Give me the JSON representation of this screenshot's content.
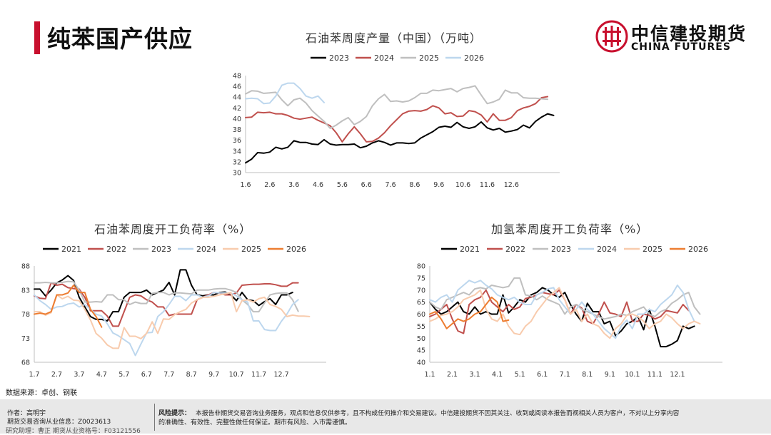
{
  "header": {
    "title": "纯苯国产供应",
    "logo_cn": "中信建投期货",
    "logo_en": "CHINA FUTURES",
    "brand_color": "#c8102e"
  },
  "source_note": "数据来源：卓创、钢联",
  "footer": {
    "author": "作者：高明宇",
    "license": "期货交易咨询从业信息：Z0023613",
    "assistant": "研究助理：曹正  期货从业资格号：F03121556",
    "risk_label": "风险提示：",
    "risk_line1": "本报告非期货交易咨询业务服务，观点和信息仅供参考，且不构成任何推介和交易建议。中信建投期货不因其关注、收到或阅读本报告而视相关人员为客户，不对以上分享内容",
    "risk_line2": "的准确性、有效性、完整性做任何保证。期市有风险、入市需谨慎。"
  },
  "chart_data": [
    {
      "type": "line",
      "title": "石油苯周度产量（中国）（万吨）",
      "ylim": [
        30,
        48
      ],
      "yticks": [
        "30",
        "32",
        "34",
        "36",
        "38",
        "40",
        "42",
        "44",
        "46",
        "48"
      ],
      "xlim": [
        0,
        52
      ],
      "x_tick_labels": [
        "1.6",
        "2.6",
        "3.6",
        "4.6",
        "5.6",
        "6.6",
        "7.6",
        "8.6",
        "9.6",
        "10.6",
        "11.6",
        "12.6"
      ],
      "x_tick_pos": [
        0,
        4,
        8,
        12,
        16,
        20,
        24,
        28,
        32,
        36,
        40,
        44
      ],
      "series": [
        {
          "name": "2023",
          "color": "#000000",
          "values": [
            31.8,
            32.5,
            33.7,
            33.6,
            33.8,
            34.7,
            34.4,
            34.7,
            35.9,
            35.6,
            35.6,
            35.3,
            35.2,
            36.1,
            35.3,
            35.1,
            35.2,
            35.2,
            35.3,
            34.6,
            34.9,
            35.5,
            35.9,
            35.6,
            35.1,
            35.5,
            35.5,
            35.4,
            35.5,
            36.4,
            37.0,
            37.6,
            38.4,
            38.6,
            38.4,
            39.3,
            38.5,
            38.2,
            38.5,
            39.4,
            38.3,
            37.9,
            38.2,
            37.5,
            37.7,
            38.0,
            38.8,
            38.3,
            39.5,
            40.3,
            40.9,
            40.6
          ]
        },
        {
          "name": "2024",
          "color": "#c0504d",
          "values": [
            40.2,
            40.3,
            41.2,
            41.1,
            41.2,
            40.9,
            40.9,
            40.6,
            40.1,
            39.9,
            40.1,
            40.3,
            39.7,
            39.2,
            38.7,
            37.4,
            35.7,
            37.2,
            38.5,
            37.2,
            35.7,
            35.8,
            36.4,
            37.4,
            38.7,
            39.8,
            40.9,
            41.4,
            41.5,
            41.4,
            41.7,
            42.4,
            42.0,
            40.9,
            41.1,
            40.4,
            40.5,
            41.5,
            41.3,
            40.7,
            39.4,
            40.9,
            39.7,
            39.7,
            40.2,
            41.5,
            42.0,
            42.3,
            42.8,
            43.9,
            44.1
          ]
        },
        {
          "name": "2025",
          "color": "#bfbfbf",
          "values": [
            44.6,
            45.2,
            45.1,
            44.7,
            44.8,
            44.9,
            43.5,
            42.4,
            43.5,
            43.8,
            42.9,
            41.5,
            40.5,
            39.5,
            38.2,
            38.8,
            39.6,
            40.2,
            38.9,
            39.5,
            40.4,
            42.4,
            43.7,
            44.5,
            43.2,
            43.3,
            43.1,
            43.3,
            43.9,
            44.7,
            44.7,
            45.3,
            45.2,
            45.4,
            45.6,
            45.0,
            45.6,
            45.8,
            46.1,
            44.4,
            42.8,
            43.1,
            43.6,
            45.3,
            44.8,
            44.8,
            43.9,
            43.8,
            43.8,
            43.7,
            43.6
          ]
        },
        {
          "name": "2026",
          "color": "#bdd7ee",
          "values": [
            43.7,
            43.8,
            43.7,
            42.8,
            42.9,
            44.2,
            46.2,
            46.6,
            46.6,
            45.6,
            44.2,
            43.8,
            44.2,
            43.0
          ]
        }
      ]
    },
    {
      "type": "line",
      "title": "石油苯周度开工负荷率（%）",
      "ylim": [
        68,
        88
      ],
      "yticks": [
        "68",
        "73",
        "78",
        "83",
        "88"
      ],
      "xlim": [
        0,
        52
      ],
      "x_tick_labels": [
        "1.7",
        "2.7",
        "3.7",
        "4.7",
        "5.7",
        "6.7",
        "7.7",
        "8.7",
        "9.7",
        "10.7",
        "11.7",
        "12.7"
      ],
      "x_tick_pos": [
        0,
        4,
        8,
        12,
        16,
        20,
        24,
        28,
        32,
        36,
        40,
        44
      ],
      "series": [
        {
          "name": "2021",
          "color": "#000000",
          "values": [
            83.2,
            83.2,
            81.8,
            83.0,
            84.5,
            85.1,
            86.0,
            85.0,
            81.5,
            79.5,
            77.5,
            76.9,
            76.9,
            76.6,
            78.5,
            78.5,
            81.5,
            82.5,
            82.5,
            82.5,
            83.0,
            82.0,
            82.5,
            83.0,
            84.6,
            82.0,
            87.2,
            87.2,
            84.0,
            82.0,
            81.8,
            82.0,
            82.0,
            82.5,
            82.6,
            82.0,
            80.8,
            82.5,
            81.0,
            80.8,
            79.8,
            80.6,
            81.2,
            80.0,
            82.0,
            82.0,
            82.5
          ]
        },
        {
          "name": "2022",
          "color": "#c0504d",
          "values": [
            81.8,
            81.3,
            81.2,
            84.5,
            84.0,
            84.2,
            83.5,
            83.3,
            83.2,
            81.5,
            78.7,
            78.7,
            78.7,
            77.6,
            75.5,
            75.5,
            78.5,
            81.5,
            82.0,
            81.8,
            81.0,
            80.5,
            79.5,
            79.5,
            77.7,
            78.0,
            78.0,
            78.0,
            78.0,
            81.0,
            81.5,
            82.0,
            82.5,
            82.4,
            82.0,
            82.0,
            82.4,
            84.0,
            84.1,
            84.2,
            84.2,
            84.3,
            84.3,
            84.1,
            83.8,
            83.8,
            84.5,
            84.5
          ]
        },
        {
          "name": "2023",
          "color": "#bfbfbf",
          "values": [
            84.5,
            84.5,
            84.6,
            84.5,
            84.5,
            84.6,
            84.8,
            84.7,
            83.0,
            80.5,
            80.5,
            80.6,
            80.5,
            82.0,
            82.0,
            81.0,
            81.0,
            80.0,
            80.5,
            80.2,
            80.2,
            82.3,
            82.5,
            82.5,
            82.0,
            82.4,
            82.4,
            82.3,
            82.2,
            83.0,
            83.0,
            83.0,
            83.2,
            83.3,
            83.3,
            83.0,
            82.5,
            81.0,
            80.0,
            78.5,
            78.5,
            80.3,
            82.0,
            82.3,
            82.4,
            82.4,
            81.0,
            78.6
          ]
        },
        {
          "name": "2024",
          "color": "#bdd7ee",
          "values": [
            82.0,
            80.8,
            80.0,
            79.0,
            79.5,
            79.6,
            80.1,
            80.3,
            79.5,
            80.0,
            79.0,
            78.0,
            77.6,
            76.0,
            74.1,
            73.5,
            72.7,
            71.9,
            69.4,
            71.8,
            74.1,
            74.2,
            77.5,
            78.5,
            80.0,
            81.7,
            81.7,
            80.8,
            82.0,
            82.0,
            81.5,
            81.8,
            82.5,
            82.4,
            82.4,
            82.4,
            81.8,
            81.0,
            80.5,
            76.6,
            76.6,
            74.8,
            74.6,
            74.6,
            76.5,
            78.0,
            80.0,
            81.0
          ]
        },
        {
          "name": "2025",
          "color": "#f8cbad",
          "values": [
            78.5,
            78.5,
            77.8,
            78.3,
            82.0,
            81.2,
            81.7,
            80.9,
            80.8,
            79.0,
            76.8,
            74.0,
            73.0,
            71.6,
            70.9,
            70.9,
            75.2,
            73.4,
            73.4,
            72.9,
            74.0,
            76.4,
            74.0,
            77.0,
            76.9,
            77.9,
            78.5,
            79.0,
            80.3,
            81.0,
            81.5,
            81.5,
            81.7,
            82.0,
            82.2,
            82.5,
            78.5,
            80.8,
            81.0,
            80.5,
            81.2,
            81.5,
            80.0,
            79.6,
            79.0,
            77.5,
            77.8,
            77.6,
            77.6,
            77.5
          ]
        },
        {
          "name": "2026",
          "color": "#ed7d31",
          "values": [
            78.0,
            78.2,
            78.0,
            78.5,
            82.0,
            82.0,
            82.4,
            84.0,
            82.5,
            82.5,
            79.0,
            77.5,
            75.3
          ]
        }
      ]
    },
    {
      "type": "line",
      "title": "加氢苯周度开工负荷率（%）",
      "ylim": [
        40,
        80
      ],
      "yticks": [
        "40",
        "45",
        "50",
        "55",
        "60",
        "65",
        "70",
        "75",
        "80"
      ],
      "xlim": [
        0,
        52
      ],
      "x_tick_labels": [
        "1.1",
        "2.1",
        "3.1",
        "4.1",
        "5.1",
        "6.1",
        "7.1",
        "8.1",
        "9.1",
        "10.1",
        "11.1",
        "12.1"
      ],
      "x_tick_pos": [
        0,
        4,
        8,
        12,
        16,
        20,
        24,
        28,
        32,
        36,
        40,
        44
      ],
      "series": [
        {
          "name": "2021",
          "color": "#000000",
          "values": [
            65.0,
            62.0,
            60.0,
            61.0,
            63.0,
            65.0,
            61.0,
            60.0,
            63.0,
            60.0,
            61.0,
            60.0,
            60.0,
            68.0,
            60.5,
            63.0,
            66.0,
            65.0,
            68.0,
            69.0,
            71.0,
            70.0,
            68.0,
            67.0,
            69.0,
            64.0,
            60.0,
            57.0,
            64.5,
            61.0,
            61.0,
            56.0,
            57.0,
            51.0,
            53.0,
            56.0,
            57.0,
            59.0,
            53.5,
            62.0,
            55.0,
            46.5,
            46.5,
            47.5,
            49.0,
            55.0,
            54.0,
            55.0
          ]
        },
        {
          "name": "2022",
          "color": "#c0504d",
          "values": [
            59.0,
            60.0,
            62.0,
            64.0,
            58.0,
            53.0,
            52.0,
            64.0,
            66.0,
            67.0,
            70.0,
            65.0,
            63.0,
            61.0,
            64.0,
            62.0,
            63.0,
            66.5,
            67.0,
            68.0,
            69.0,
            68.5,
            68.0,
            70.0,
            66.0,
            60.0,
            64.0,
            62.5,
            57.0,
            56.0,
            60.0,
            65.0,
            60.5,
            60.0,
            59.0,
            65.0,
            57.0,
            57.0,
            60.0,
            59.5,
            58.0,
            59.0,
            61.5,
            61.0,
            60.5,
            64.0,
            61.5
          ]
        },
        {
          "name": "2023",
          "color": "#bfbfbf",
          "values": [
            65.0,
            63.0,
            62.0,
            66.0,
            67.0,
            68.0,
            69.0,
            68.0,
            70.5,
            71.0,
            70.5,
            72.0,
            71.5,
            71.0,
            71.5,
            75.0,
            75.0,
            68.0,
            67.5,
            66.0,
            67.5,
            66.0,
            65.0,
            64.0,
            60.0,
            63.0,
            64.0,
            62.0,
            61.0,
            60.0,
            59.0,
            58.0,
            58.5,
            59.0,
            60.0,
            59.5,
            61.0,
            62.0,
            63.0,
            60.0,
            59.0,
            61.0,
            62.0,
            64.5,
            66.0,
            68.0,
            69.0,
            63.0,
            60.0
          ]
        },
        {
          "name": "2024",
          "color": "#bdd7ee",
          "values": [
            66.0,
            65.0,
            67.0,
            68.0,
            65.0,
            70.0,
            72.0,
            74.0,
            73.0,
            74.0,
            72.0,
            70.5,
            68.0,
            67.0,
            66.0,
            67.0,
            65.0,
            64.0,
            64.0,
            68.0,
            69.0,
            70.5,
            71.0,
            66.0,
            63.0,
            60.0,
            62.0,
            65.0,
            62.0,
            60.0,
            57.0,
            54.0,
            52.0,
            50.0,
            55.0,
            57.5,
            54.0,
            60.0,
            60.0,
            62.0,
            61.0,
            64.0,
            66.0,
            68.0,
            72.0,
            69.0,
            62.0,
            57.0
          ]
        },
        {
          "name": "2025",
          "color": "#f8cbad",
          "values": [
            57.0,
            58.0,
            59.5,
            60.0,
            61.0,
            63.0,
            66.0,
            67.0,
            68.0,
            70.0,
            62.0,
            58.0,
            57.0,
            60.0,
            55.0,
            52.0,
            51.5,
            55.0,
            57.0,
            61.0,
            64.0,
            67.0,
            69.0,
            71.0,
            66.0,
            60.0,
            62.0,
            57.0,
            60.0,
            56.0,
            55.0,
            52.0,
            50.0,
            54.0,
            56.0,
            59.5,
            60.0,
            59.0,
            57.0,
            54.0,
            56.0,
            57.0,
            60.0,
            58.5,
            56.0,
            54.0,
            56.0,
            57.0,
            56.0
          ]
        },
        {
          "name": "2026",
          "color": "#ed7d31",
          "values": [
            60.0,
            61.0,
            58.0,
            54.0,
            56.0,
            58.0,
            57.0,
            58.0,
            60.0,
            61.0,
            64.0,
            67.0,
            65.0,
            57.0,
            57.5
          ]
        }
      ]
    }
  ]
}
